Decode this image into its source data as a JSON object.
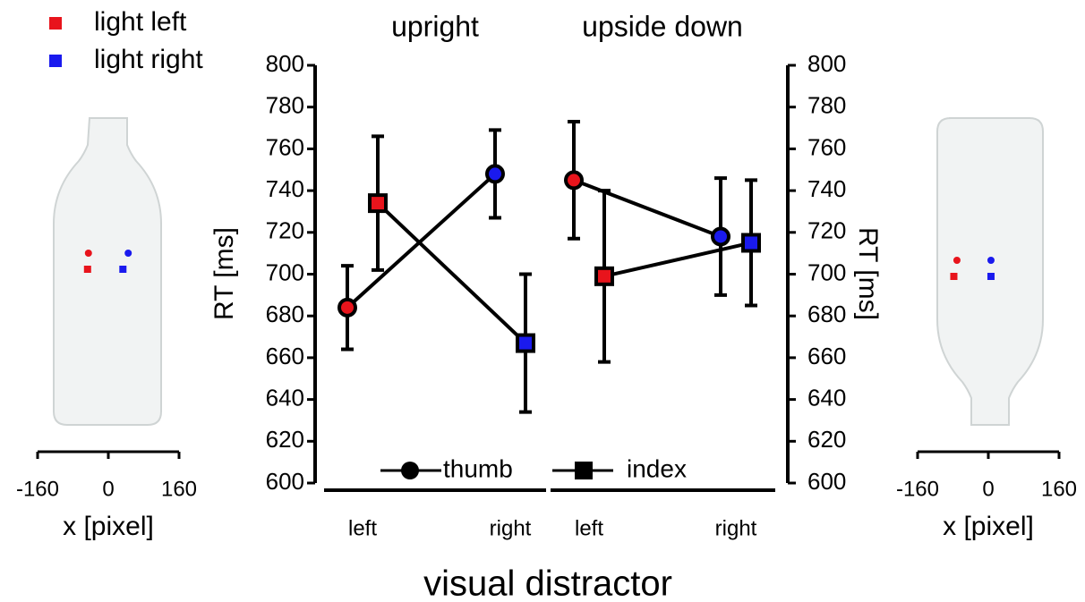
{
  "chart_data": [
    {
      "type": "line",
      "title": "upright",
      "categories": [
        "left",
        "right"
      ],
      "category_colors": [
        "#e8141c",
        "#1a1aee"
      ],
      "ylim": [
        600,
        800
      ],
      "yticks": [
        600,
        620,
        640,
        660,
        680,
        700,
        720,
        740,
        760,
        780,
        800
      ],
      "y_label": "RT [ms]",
      "x_label": "visual distractor",
      "series": [
        {
          "name": "thumb",
          "marker": "circle",
          "values": [
            684,
            748
          ],
          "errors": [
            20,
            21
          ]
        },
        {
          "name": "index",
          "marker": "square",
          "values": [
            734,
            667
          ],
          "errors": [
            32,
            33
          ]
        }
      ]
    },
    {
      "type": "line",
      "title": "upside down",
      "categories": [
        "left",
        "right"
      ],
      "category_colors": [
        "#e8141c",
        "#1a1aee"
      ],
      "ylim": [
        600,
        800
      ],
      "yticks": [
        600,
        620,
        640,
        660,
        680,
        700,
        720,
        740,
        760,
        780,
        800
      ],
      "y_label": "RT [ms]",
      "series": [
        {
          "marker": "circle",
          "values": [
            745,
            718
          ],
          "errors": [
            28,
            28
          ]
        },
        {
          "marker": "square",
          "values": [
            699,
            715
          ],
          "errors": [
            41,
            30
          ]
        }
      ]
    },
    {
      "type": "scatter",
      "xlim": [
        -160,
        160
      ],
      "xticks": [
        -160,
        0,
        160
      ],
      "x_label": "x [pixel]",
      "series": [
        {
          "name": "light left",
          "color": "#e8141c",
          "x": [
            -45,
            -47
          ],
          "markers": [
            "circle",
            "square"
          ]
        },
        {
          "name": "light right",
          "color": "#1a1aee",
          "x": [
            45,
            33
          ],
          "markers": [
            "circle",
            "square"
          ]
        }
      ]
    },
    {
      "type": "scatter",
      "xlim": [
        -160,
        160
      ],
      "xticks": [
        -160,
        0,
        160
      ],
      "x_label": "x [pixel]",
      "series": [
        {
          "color": "#e8141c",
          "x": [
            -71,
            -78
          ],
          "markers": [
            "circle",
            "square"
          ]
        },
        {
          "color": "#1a1aee",
          "x": [
            6,
            6
          ],
          "markers": [
            "circle",
            "square"
          ]
        }
      ]
    }
  ]
}
